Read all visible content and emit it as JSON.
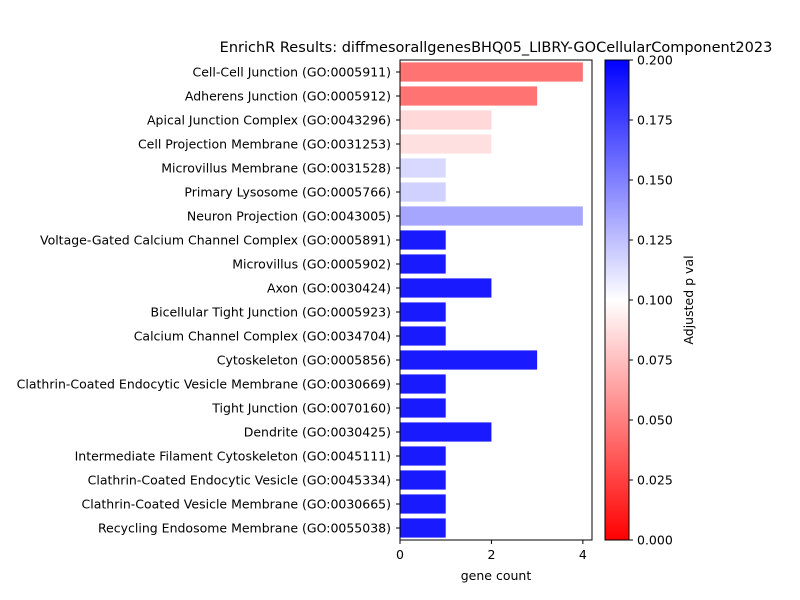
{
  "chart_data": {
    "type": "bar",
    "orientation": "horizontal",
    "title": "EnrichR Results: diffmesorallgenesBHQ05_LIBRY-GOCellularComponent2023",
    "xlabel": "gene count",
    "xlim": [
      0,
      4.2
    ],
    "xticks": [
      0,
      2,
      4
    ],
    "categories": [
      "Cell-Cell Junction (GO:0005911)",
      "Adherens Junction (GO:0005912)",
      "Apical Junction Complex (GO:0043296)",
      "Cell Projection Membrane (GO:0031253)",
      "Microvillus Membrane (GO:0031528)",
      "Primary Lysosome (GO:0005766)",
      "Neuron Projection (GO:0043005)",
      "Voltage-Gated Calcium Channel Complex (GO:0005891)",
      "Microvillus (GO:0005902)",
      "Axon (GO:0030424)",
      "Bicellular Tight Junction (GO:0005923)",
      "Calcium Channel Complex (GO:0034704)",
      "Cytoskeleton (GO:0005856)",
      "Clathrin-Coated Endocytic Vesicle Membrane (GO:0030669)",
      "Tight Junction (GO:0070160)",
      "Dendrite (GO:0030425)",
      "Intermediate Filament Cytoskeleton (GO:0045111)",
      "Clathrin-Coated Endocytic Vesicle (GO:0045334)",
      "Clathrin-Coated Vesicle Membrane (GO:0030665)",
      "Recycling Endosome Membrane (GO:0055038)"
    ],
    "values": [
      4,
      3,
      2,
      2,
      1,
      1,
      4,
      1,
      1,
      2,
      1,
      1,
      3,
      1,
      1,
      2,
      1,
      1,
      1,
      1
    ],
    "adjusted_p": [
      0.045,
      0.045,
      0.085,
      0.088,
      0.115,
      0.118,
      0.135,
      0.19,
      0.19,
      0.19,
      0.19,
      0.19,
      0.19,
      0.19,
      0.19,
      0.19,
      0.19,
      0.19,
      0.19,
      0.19
    ],
    "colorbar": {
      "label": "Adjusted p val",
      "range": [
        0,
        0.2
      ],
      "ticks": [
        "0.000",
        "0.025",
        "0.050",
        "0.075",
        "0.100",
        "0.125",
        "0.150",
        "0.175",
        "0.200"
      ],
      "colormap": "bwr_r",
      "colors": {
        "low": "#ff0000",
        "mid": "#ffffff",
        "high": "#0000ff"
      }
    }
  }
}
